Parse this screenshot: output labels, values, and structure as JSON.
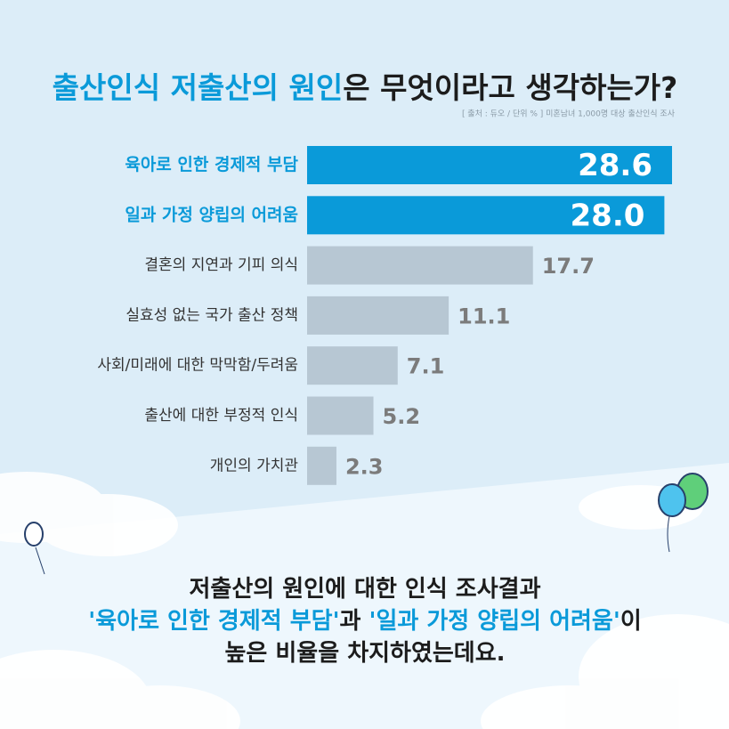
{
  "chart_data": {
    "type": "hbar",
    "title": [
      "출산인식 저출산의 원인",
      "은 무엇이라고 생각하는가?"
    ],
    "source": "[ 출처 : 듀오 / 단위 % ]  미혼남녀 1,000명 대상 출산인식 조사",
    "categories": [
      "육아로 인한 경제적 부담",
      "일과 가정 양립의 어려움",
      "결혼의 지연과 기피 의식",
      "실효성 없는 국가 출산 정책",
      "사회/미래에 대한 막막함/두려움",
      "출산에 대한 부정적 인식",
      "개인의 가치관"
    ],
    "values": [
      28.6,
      28.0,
      17.7,
      11.1,
      7.1,
      5.2,
      2.3
    ],
    "value_labels": [
      "28.6",
      "28.0",
      "17.7",
      "11.1",
      "7.1",
      "5.2",
      "2.3"
    ],
    "colors": [
      "#0a9ad9",
      "#0a9ad9",
      "#b7c7d3",
      "#b7c7d3",
      "#b7c7d3",
      "#b7c7d3",
      "#b7c7d3"
    ]
  },
  "summary": [
    [
      "저출산의 원인에 대한 인식 조사결과"
    ],
    [
      "'육아로 인한 경제적 부담'",
      "과 ",
      "'일과 가정 양립의 어려움'",
      "이"
    ],
    [
      "높은 비율을 차지하였는데요."
    ]
  ]
}
